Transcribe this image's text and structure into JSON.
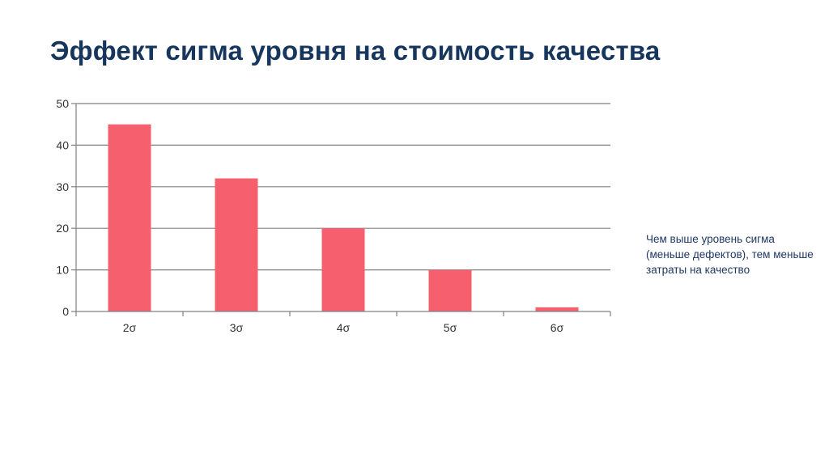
{
  "slide": {
    "title": "Эффект сигма уровня на стоимость качества",
    "note": "Чем выше уровень сигма (меньше дефектов), тем меньше затраты на качество"
  },
  "chart_data": {
    "type": "bar",
    "title": "",
    "xlabel": "",
    "ylabel": "",
    "categories": [
      "2σ",
      "3σ",
      "4σ",
      "5σ",
      "6σ"
    ],
    "values": [
      45,
      32,
      20,
      10,
      1
    ],
    "ylim": [
      0,
      50
    ],
    "yticks": [
      0,
      10,
      20,
      30,
      40,
      50
    ],
    "grid": true,
    "legend": "none",
    "bar_color": "#f65f6e",
    "grid_color": "#808080",
    "axis_color": "#808080",
    "tick_label_color": "#333333"
  }
}
